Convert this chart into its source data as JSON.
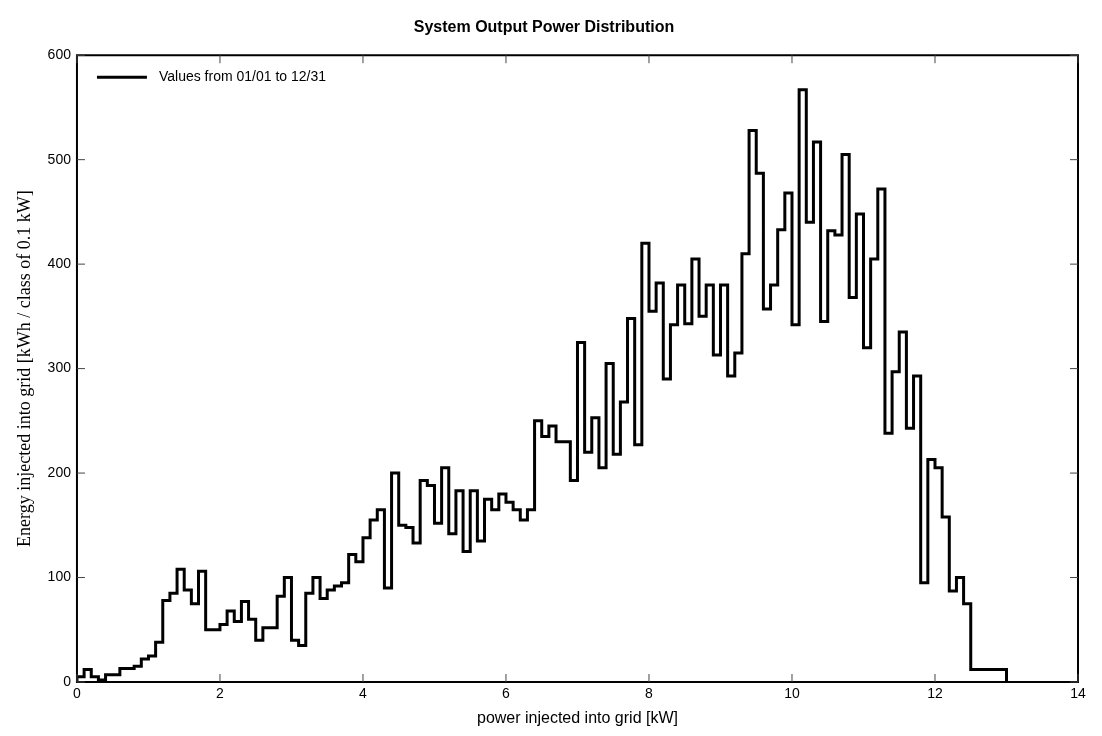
{
  "chart_data": {
    "type": "histogram",
    "title": "System Output Power Distribution",
    "xlabel": "power injected into grid [kW]",
    "ylabel": "Energy injected into grid [kWh / class of 0.1 kW]",
    "bins": [
      0,
      0.1,
      0.2,
      0.3,
      0.4,
      0.5,
      0.6,
      0.7,
      0.8,
      0.9,
      1,
      1.1,
      1.2,
      1.3,
      1.4,
      1.5,
      1.6,
      1.7,
      1.8,
      1.9,
      2,
      2.1,
      2.2,
      2.3,
      2.4,
      2.5,
      2.6,
      2.7,
      2.8,
      2.9,
      3,
      3.1,
      3.2,
      3.3,
      3.4,
      3.5,
      3.6,
      3.7,
      3.8,
      3.9,
      4,
      4.1,
      4.2,
      4.3,
      4.4,
      4.5,
      4.6,
      4.7,
      4.8,
      4.9,
      5,
      5.1,
      5.2,
      5.3,
      5.4,
      5.5,
      5.6,
      5.7,
      5.8,
      5.9,
      6,
      6.1,
      6.2,
      6.3,
      6.4,
      6.5,
      6.6,
      6.7,
      6.8,
      6.9,
      7,
      7.1,
      7.2,
      7.3,
      7.4,
      7.5,
      7.6,
      7.7,
      7.8,
      7.9,
      8,
      8.1,
      8.2,
      8.3,
      8.4,
      8.5,
      8.6,
      8.7,
      8.8,
      8.9,
      9,
      9.1,
      9.2,
      9.3,
      9.4,
      9.5,
      9.6,
      9.7,
      9.8,
      9.9,
      10,
      10.1,
      10.2,
      10.3,
      10.4,
      10.5,
      10.6,
      10.7,
      10.8,
      10.9,
      11,
      11.1,
      11.2,
      11.3,
      11.4,
      11.5,
      11.6,
      11.7,
      11.8,
      11.9,
      12,
      12.1,
      12.2,
      12.3,
      12.4,
      12.5,
      12.6,
      12.7,
      12.8,
      12.9,
      13
    ],
    "series": [
      {
        "name": "Values from 01/01 to 12/31",
        "color": "#000000",
        "values": [
          5,
          12,
          5,
          2,
          7,
          7,
          13,
          13,
          15,
          22,
          25,
          38,
          78,
          85,
          108,
          88,
          75,
          106,
          50,
          50,
          55,
          68,
          58,
          77,
          60,
          40,
          52,
          52,
          82,
          100,
          40,
          35,
          85,
          100,
          80,
          88,
          92,
          95,
          122,
          115,
          138,
          155,
          165,
          90,
          200,
          150,
          148,
          133,
          193,
          188,
          152,
          205,
          142,
          183,
          125,
          183,
          135,
          175,
          165,
          180,
          172,
          165,
          155,
          165,
          250,
          235,
          245,
          230,
          230,
          193,
          325,
          220,
          253,
          205,
          305,
          218,
          268,
          348,
          227,
          420,
          355,
          382,
          290,
          342,
          380,
          343,
          405,
          350,
          380,
          313,
          380,
          293,
          315,
          410,
          528,
          487,
          357,
          380,
          433,
          468,
          342,
          567,
          440,
          517,
          345,
          432,
          428,
          505,
          368,
          448,
          320,
          405,
          472,
          238,
          297,
          335,
          243,
          293,
          95,
          213,
          205,
          158,
          87,
          100,
          75,
          12,
          12,
          12,
          12,
          12
        ]
      }
    ],
    "xlim": [
      0,
      14
    ],
    "xticks": [
      0,
      2,
      4,
      6,
      8,
      10,
      12,
      14
    ],
    "ylim": [
      0,
      600
    ],
    "yticks": [
      0,
      100,
      200,
      300,
      400,
      500,
      600
    ],
    "legend": "top left"
  }
}
